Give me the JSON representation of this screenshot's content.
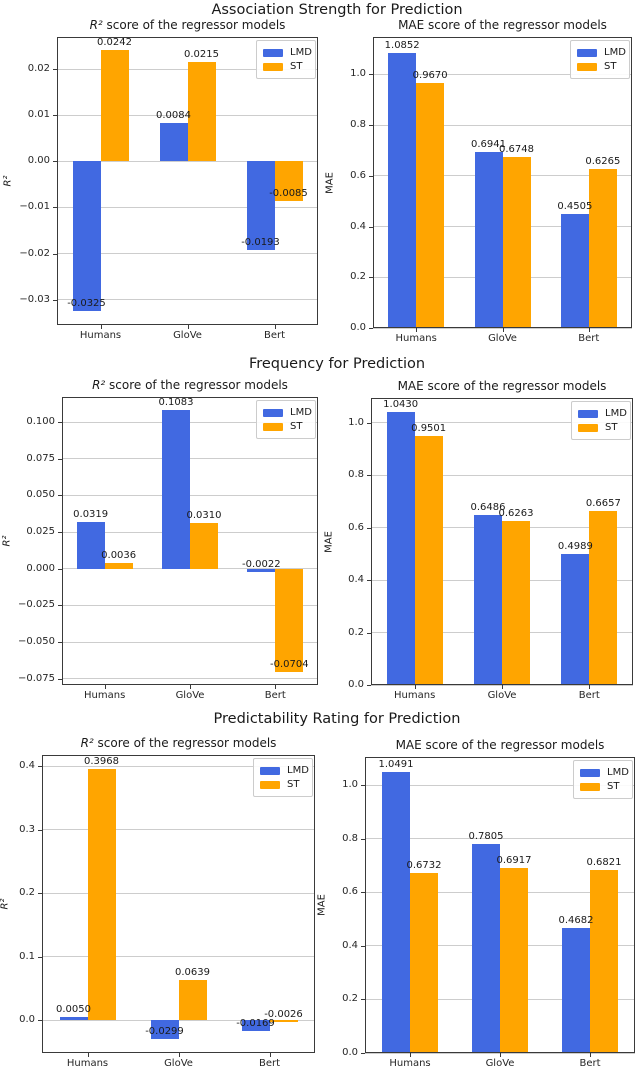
{
  "sections": [
    {
      "suptitle": "Association Strength for Prediction"
    },
    {
      "suptitle": "Frequency for Prediction"
    },
    {
      "suptitle": "Predictability Rating for Prediction"
    }
  ],
  "legend_labels": [
    "LMD",
    "ST"
  ],
  "colors": {
    "lmd_blue": "#4169E1",
    "st_orange": "#FFA500",
    "gridline": "#cdcdcd",
    "spine": "#3a3a3a",
    "text": "#262626"
  },
  "chart_data": [
    {
      "type": "bar",
      "section": "Association Strength for Prediction",
      "panel": "left",
      "title": "R² score of the regressor models",
      "ylabel": "R²",
      "categories": [
        "Humans",
        "GloVe",
        "Bert"
      ],
      "series": [
        {
          "name": "LMD",
          "color": "#4169E1",
          "values": [
            -0.0325,
            0.0084,
            -0.0193
          ],
          "labels": [
            "-0.0325",
            "0.0084",
            "-0.0193"
          ]
        },
        {
          "name": "ST",
          "color": "#FFA500",
          "values": [
            0.0242,
            0.0215,
            -0.0085
          ],
          "labels": [
            "0.0242",
            "0.0215",
            "-0.0085"
          ]
        }
      ],
      "ylim": [
        -0.0355,
        0.027
      ],
      "yticks": [
        0.02,
        0.01,
        0,
        -0.01,
        -0.02,
        -0.03
      ],
      "ytick_labels": [
        "0.02",
        "0.01",
        "0.00",
        "−0.01",
        "−0.02",
        "−0.03"
      ],
      "grid": true,
      "legend_position": "upper right"
    },
    {
      "type": "bar",
      "section": "Association Strength for Prediction",
      "panel": "right",
      "title": "MAE score of the regressor models",
      "ylabel": "MAE",
      "categories": [
        "Humans",
        "GloVe",
        "Bert"
      ],
      "series": [
        {
          "name": "LMD",
          "color": "#4169E1",
          "values": [
            1.0852,
            0.6941,
            0.4505
          ],
          "labels": [
            "1.0852",
            "0.6941",
            "0.4505"
          ]
        },
        {
          "name": "ST",
          "color": "#FFA500",
          "values": [
            0.967,
            0.6748,
            0.6265
          ],
          "labels": [
            "0.9670",
            "0.6748",
            "0.6265"
          ]
        }
      ],
      "ylim": [
        0,
        1.147
      ],
      "yticks": [
        1.0,
        0.8,
        0.6,
        0.4,
        0.2,
        0.0
      ],
      "ytick_labels": [
        "1.0",
        "0.8",
        "0.6",
        "0.4",
        "0.2",
        "0.0"
      ],
      "grid": true,
      "legend_position": "upper right"
    },
    {
      "type": "bar",
      "section": "Frequency for Prediction",
      "panel": "left",
      "title": "R² score of the regressor models",
      "ylabel": "R²",
      "categories": [
        "Humans",
        "GloVe",
        "Bert"
      ],
      "series": [
        {
          "name": "LMD",
          "color": "#4169E1",
          "values": [
            0.0319,
            0.1083,
            -0.0022
          ],
          "labels": [
            "0.0319",
            "0.1083",
            "-0.0022"
          ]
        },
        {
          "name": "ST",
          "color": "#FFA500",
          "values": [
            0.0036,
            0.031,
            -0.0704
          ],
          "labels": [
            "0.0036",
            "0.0310",
            "-0.0704"
          ]
        }
      ],
      "ylim": [
        -0.0793,
        0.1172
      ],
      "yticks": [
        0.1,
        0.075,
        0.05,
        0.025,
        0.0,
        -0.025,
        -0.05,
        -0.075
      ],
      "ytick_labels": [
        "0.100",
        "0.075",
        "0.050",
        "0.025",
        "0.000",
        "−0.025",
        "−0.050",
        "−0.075"
      ],
      "grid": true,
      "legend_position": "upper right"
    },
    {
      "type": "bar",
      "section": "Frequency for Prediction",
      "panel": "right",
      "title": "MAE score of the regressor models",
      "ylabel": "MAE",
      "categories": [
        "Humans",
        "GloVe",
        "Bert"
      ],
      "series": [
        {
          "name": "LMD",
          "color": "#4169E1",
          "values": [
            1.043,
            0.6486,
            0.4989
          ],
          "labels": [
            "1.0430",
            "0.6486",
            "0.4989"
          ]
        },
        {
          "name": "ST",
          "color": "#FFA500",
          "values": [
            0.9501,
            0.6263,
            0.6657
          ],
          "labels": [
            "0.9501",
            "0.6263",
            "0.6657"
          ]
        }
      ],
      "ylim": [
        0,
        1.095
      ],
      "yticks": [
        1.0,
        0.8,
        0.6,
        0.4,
        0.2,
        0.0
      ],
      "ytick_labels": [
        "1.0",
        "0.8",
        "0.6",
        "0.4",
        "0.2",
        "0.0"
      ],
      "grid": true,
      "legend_position": "upper right"
    },
    {
      "type": "bar",
      "section": "Predictability Rating for Prediction",
      "panel": "left",
      "title": "R² score of the regressor models",
      "ylabel": "R²",
      "categories": [
        "Humans",
        "GloVe",
        "Bert"
      ],
      "series": [
        {
          "name": "LMD",
          "color": "#4169E1",
          "values": [
            0.005,
            -0.0299,
            -0.0169
          ],
          "labels": [
            "0.0050",
            "-0.0299",
            "-0.0169"
          ]
        },
        {
          "name": "ST",
          "color": "#FFA500",
          "values": [
            0.3968,
            0.0639,
            -0.0026
          ],
          "labels": [
            "0.3968",
            "0.0639",
            "-0.0026"
          ]
        }
      ],
      "ylim": [
        -0.0512,
        0.4181
      ],
      "yticks": [
        0.4,
        0.3,
        0.2,
        0.1,
        0.0
      ],
      "ytick_labels": [
        "0.4",
        "0.3",
        "0.2",
        "0.1",
        "0.0"
      ],
      "grid": true,
      "legend_position": "upper right"
    },
    {
      "type": "bar",
      "section": "Predictability Rating for Prediction",
      "panel": "right",
      "title": "MAE score of the regressor models",
      "ylabel": "MAE",
      "categories": [
        "Humans",
        "GloVe",
        "Bert"
      ],
      "series": [
        {
          "name": "LMD",
          "color": "#4169E1",
          "values": [
            1.0491,
            0.7805,
            0.4682
          ],
          "labels": [
            "1.0491",
            "0.7805",
            "0.4682"
          ]
        },
        {
          "name": "ST",
          "color": "#FFA500",
          "values": [
            0.6732,
            0.6917,
            0.6821
          ],
          "labels": [
            "0.6732",
            "0.6917",
            "0.6821"
          ]
        }
      ],
      "ylim": [
        0,
        1.105
      ],
      "yticks": [
        1.0,
        0.8,
        0.6,
        0.4,
        0.2,
        0.0
      ],
      "ytick_labels": [
        "1.0",
        "0.8",
        "0.6",
        "0.4",
        "0.2",
        "0.0"
      ],
      "grid": true,
      "legend_position": "upper right"
    }
  ]
}
